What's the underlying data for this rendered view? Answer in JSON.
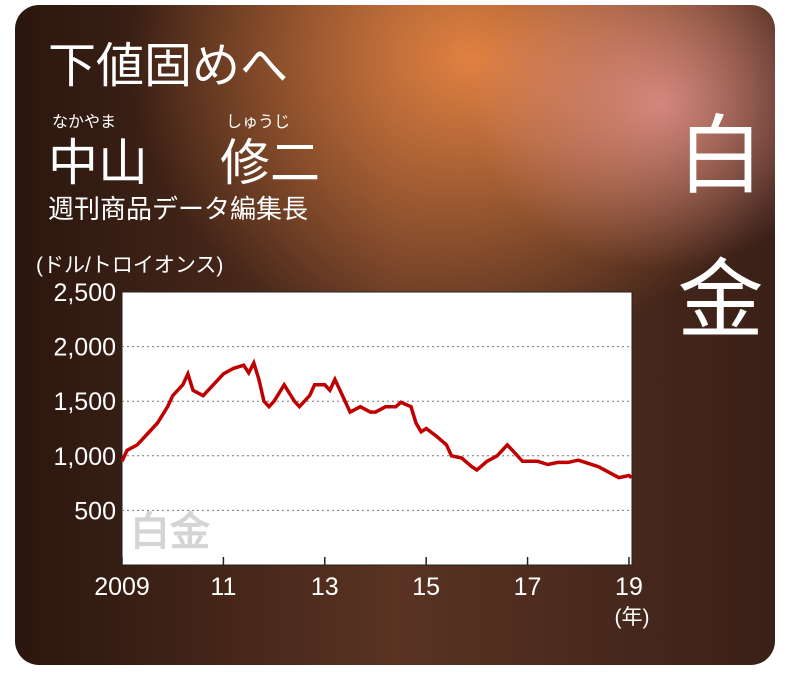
{
  "chart_data": {
    "type": "line",
    "title": "下値固めへ",
    "author_reading": [
      "なかやま",
      "しゅうじ"
    ],
    "author": [
      "中山",
      "修二"
    ],
    "author_role": "週刊商品データ編集長",
    "side_label": "白金",
    "watermark": "白金",
    "y_label": "(ドル/トロイオンス)",
    "x_label": "(年)",
    "color": "#c00000",
    "grid": true,
    "xlim": [
      2009,
      2019.06
    ],
    "xticks": [
      {
        "value": 2009,
        "label": "2009"
      },
      {
        "value": 2011,
        "label": "11"
      },
      {
        "value": 2013,
        "label": "13"
      },
      {
        "value": 2015,
        "label": "15"
      },
      {
        "value": 2017,
        "label": "17"
      },
      {
        "value": 2019,
        "label": "19"
      }
    ],
    "ylim": [
      0,
      2500
    ],
    "yticks": [
      {
        "value": 500,
        "label": "500"
      },
      {
        "value": 1000,
        "label": "1,000"
      },
      {
        "value": 1500,
        "label": "1,500"
      },
      {
        "value": 2000,
        "label": "2,000"
      },
      {
        "value": 2500,
        "label": "2,500"
      }
    ],
    "x": [
      2009.0,
      2009.1,
      2009.3,
      2009.5,
      2009.7,
      2009.9,
      2010.0,
      2010.2,
      2010.3,
      2010.4,
      2010.6,
      2010.8,
      2011.0,
      2011.2,
      2011.4,
      2011.5,
      2011.6,
      2011.7,
      2011.8,
      2011.9,
      2012.0,
      2012.2,
      2012.4,
      2012.5,
      2012.7,
      2012.8,
      2013.0,
      2013.1,
      2013.2,
      2013.4,
      2013.5,
      2013.7,
      2013.9,
      2014.0,
      2014.2,
      2014.4,
      2014.5,
      2014.7,
      2014.8,
      2014.9,
      2015.0,
      2015.2,
      2015.4,
      2015.5,
      2015.7,
      2015.9,
      2016.0,
      2016.2,
      2016.4,
      2016.6,
      2016.7,
      2016.9,
      2017.0,
      2017.2,
      2017.4,
      2017.6,
      2017.8,
      2018.0,
      2018.2,
      2018.4,
      2018.6,
      2018.8,
      2019.0,
      2019.05
    ],
    "values": [
      950,
      1050,
      1100,
      1200,
      1300,
      1450,
      1550,
      1650,
      1750,
      1600,
      1550,
      1650,
      1750,
      1800,
      1830,
      1760,
      1850,
      1700,
      1500,
      1450,
      1500,
      1650,
      1500,
      1450,
      1550,
      1650,
      1650,
      1600,
      1700,
      1500,
      1400,
      1450,
      1400,
      1400,
      1450,
      1450,
      1490,
      1450,
      1300,
      1220,
      1250,
      1180,
      1100,
      1000,
      980,
      900,
      870,
      950,
      1000,
      1100,
      1050,
      950,
      950,
      950,
      920,
      940,
      940,
      960,
      930,
      900,
      850,
      800,
      820,
      800
    ]
  }
}
